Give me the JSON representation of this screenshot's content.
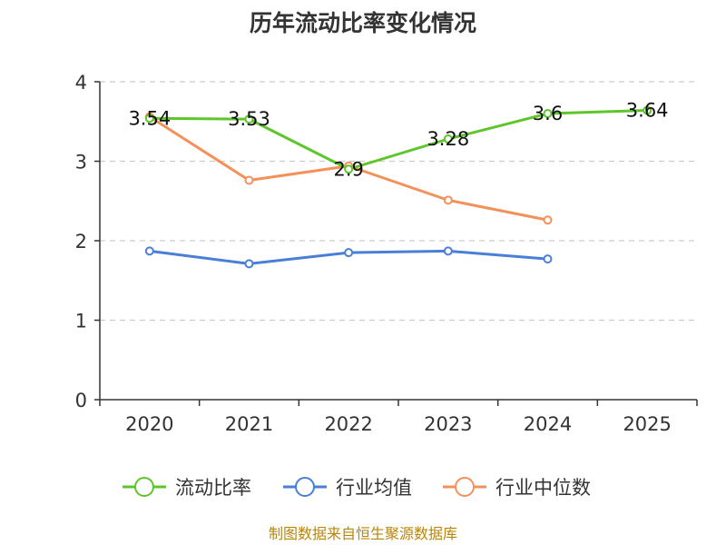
{
  "chart_data": {
    "type": "line",
    "title": "历年流动比率变化情况",
    "categories": [
      "2020",
      "2021",
      "2022",
      "2023",
      "2024",
      "2025"
    ],
    "ylim": [
      0,
      4
    ],
    "yticks": [
      0,
      1,
      2,
      3,
      4
    ],
    "grid": true,
    "legend_position": "bottom",
    "series": [
      {
        "name": "流动比率",
        "color": "#5ec52b",
        "values": [
          3.54,
          3.53,
          2.9,
          3.28,
          3.6,
          3.64
        ],
        "labels": [
          "3.54",
          "3.53",
          "2.9",
          "3.28",
          "3.6",
          "3.64"
        ]
      },
      {
        "name": "行业均值",
        "color": "#4a7fd8",
        "values": [
          1.87,
          1.71,
          1.85,
          1.87,
          1.77,
          null
        ]
      },
      {
        "name": "行业中位数",
        "color": "#f4915b",
        "values": [
          3.56,
          2.76,
          2.94,
          2.51,
          2.26,
          null
        ]
      }
    ]
  },
  "source_text": "制图数据来自恒生聚源数据库"
}
